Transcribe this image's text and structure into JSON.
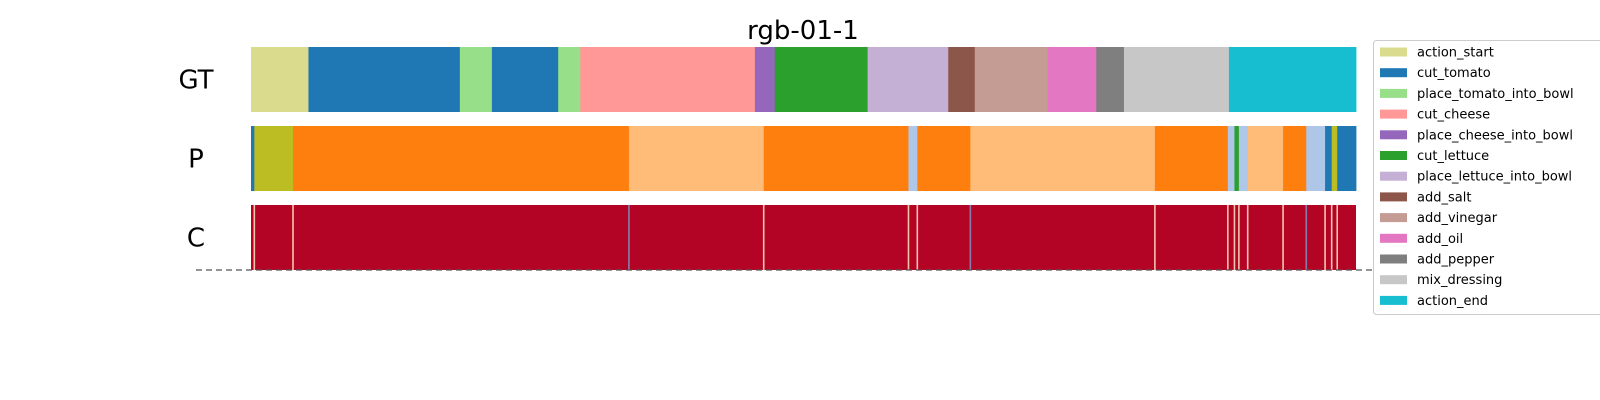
{
  "chart_data": {
    "type": "segmentation",
    "title": "rgb-01-1",
    "x_range": [
      0,
      1000
    ],
    "rows": [
      {
        "label": "GT",
        "segments": [
          {
            "start": 0,
            "end": 52,
            "class": "action_start"
          },
          {
            "start": 52,
            "end": 189,
            "class": "cut_tomato"
          },
          {
            "start": 189,
            "end": 218,
            "class": "place_tomato_into_bowl"
          },
          {
            "start": 218,
            "end": 278,
            "class": "cut_tomato"
          },
          {
            "start": 278,
            "end": 298,
            "class": "place_tomato_into_bowl"
          },
          {
            "start": 298,
            "end": 456,
            "class": "cut_cheese"
          },
          {
            "start": 456,
            "end": 474,
            "class": "place_cheese_into_bowl"
          },
          {
            "start": 474,
            "end": 558,
            "class": "cut_lettuce"
          },
          {
            "start": 558,
            "end": 631,
            "class": "place_lettuce_into_bowl"
          },
          {
            "start": 631,
            "end": 655,
            "class": "add_salt"
          },
          {
            "start": 655,
            "end": 721,
            "class": "add_vinegar"
          },
          {
            "start": 721,
            "end": 765,
            "class": "add_oil"
          },
          {
            "start": 765,
            "end": 790,
            "class": "add_pepper"
          },
          {
            "start": 790,
            "end": 885,
            "class": "mix_dressing"
          },
          {
            "start": 885,
            "end": 1000,
            "class": "action_end"
          }
        ]
      },
      {
        "label": "P",
        "segments": [
          {
            "start": 0,
            "end": 3,
            "color": "#1f77b4"
          },
          {
            "start": 3,
            "end": 38,
            "color": "#bcbd22"
          },
          {
            "start": 38,
            "end": 342,
            "color": "#ff7f0e"
          },
          {
            "start": 342,
            "end": 464,
            "color": "#ffbb78"
          },
          {
            "start": 464,
            "end": 595,
            "color": "#ff7f0e"
          },
          {
            "start": 595,
            "end": 603,
            "color": "#aec7e8"
          },
          {
            "start": 603,
            "end": 651,
            "color": "#ff7f0e"
          },
          {
            "start": 651,
            "end": 818,
            "color": "#ffbb78"
          },
          {
            "start": 818,
            "end": 884,
            "color": "#ff7f0e"
          },
          {
            "start": 884,
            "end": 890,
            "color": "#aec7e8"
          },
          {
            "start": 890,
            "end": 894,
            "color": "#2ca02c"
          },
          {
            "start": 894,
            "end": 902,
            "color": "#aec7e8"
          },
          {
            "start": 902,
            "end": 934,
            "color": "#ffbb78"
          },
          {
            "start": 934,
            "end": 955,
            "color": "#ff7f0e"
          },
          {
            "start": 955,
            "end": 972,
            "color": "#aec7e8"
          },
          {
            "start": 972,
            "end": 978,
            "color": "#1f77b4"
          },
          {
            "start": 978,
            "end": 983,
            "color": "#bcbd22"
          },
          {
            "start": 983,
            "end": 1000,
            "color": "#1f77b4"
          }
        ]
      },
      {
        "label": "C",
        "base_color": "#b40426",
        "boundaries": [
          {
            "x": 3,
            "color": "#f4c4a8"
          },
          {
            "x": 38,
            "color": "#f4c4a8"
          },
          {
            "x": 342,
            "color": "#8a7ca8"
          },
          {
            "x": 464,
            "color": "#f4c4a8"
          },
          {
            "x": 595,
            "color": "#f4c4a8"
          },
          {
            "x": 603,
            "color": "#f4c4a8"
          },
          {
            "x": 651,
            "color": "#8a7ca8"
          },
          {
            "x": 818,
            "color": "#f4c4a8"
          },
          {
            "x": 884,
            "color": "#f4c4a8"
          },
          {
            "x": 890,
            "color": "#f4c4a8"
          },
          {
            "x": 894,
            "color": "#f4c4a8"
          },
          {
            "x": 902,
            "color": "#f4c4a8"
          },
          {
            "x": 934,
            "color": "#f4c4a8"
          },
          {
            "x": 955,
            "color": "#8a7ca8"
          },
          {
            "x": 972,
            "color": "#f4c4a8"
          },
          {
            "x": 978,
            "color": "#f4c4a8"
          },
          {
            "x": 983,
            "color": "#f4c4a8"
          }
        ]
      }
    ],
    "legend": [
      {
        "label": "action_start",
        "color": "#dbdb8d"
      },
      {
        "label": "cut_tomato",
        "color": "#1f77b4"
      },
      {
        "label": "place_tomato_into_bowl",
        "color": "#98df8a"
      },
      {
        "label": "cut_cheese",
        "color": "#ff9896"
      },
      {
        "label": "place_cheese_into_bowl",
        "color": "#9467bd"
      },
      {
        "label": "cut_lettuce",
        "color": "#2ca02c"
      },
      {
        "label": "place_lettuce_into_bowl",
        "color": "#c5b0d5"
      },
      {
        "label": "add_salt",
        "color": "#8c564b"
      },
      {
        "label": "add_vinegar",
        "color": "#c49c94"
      },
      {
        "label": "add_oil",
        "color": "#e377c2"
      },
      {
        "label": "add_pepper",
        "color": "#7f7f7f"
      },
      {
        "label": "mix_dressing",
        "color": "#c7c7c7"
      },
      {
        "label": "action_end",
        "color": "#17becf"
      }
    ],
    "legend_position": "right"
  }
}
